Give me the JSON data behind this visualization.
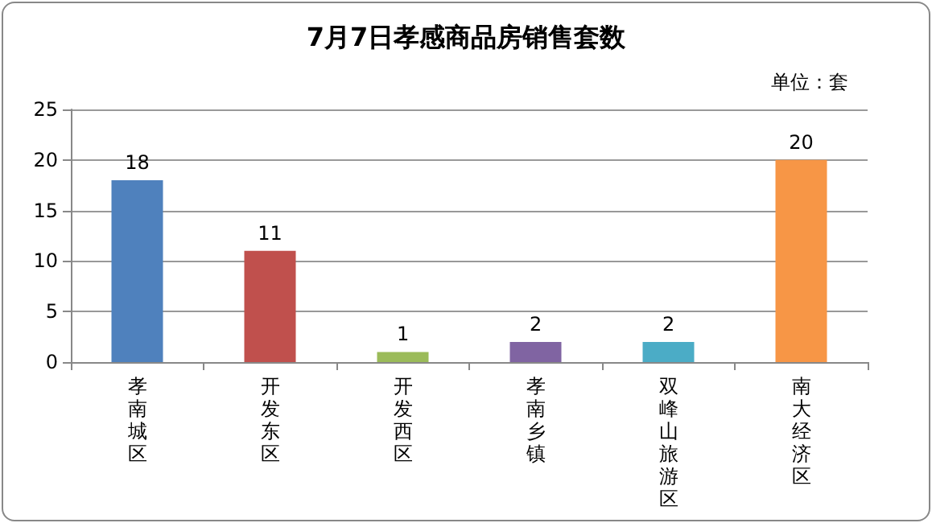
{
  "chart_data": {
    "type": "bar",
    "title": "7月7日孝感商品房销售套数",
    "subtitle": "单位：套",
    "categories": [
      "孝南城区",
      "开发东区",
      "开发西区",
      "孝南乡镇",
      "双峰山旅游区",
      "南大经济区"
    ],
    "values": [
      18,
      11,
      1,
      2,
      2,
      20
    ],
    "colors": [
      "#4f81bd",
      "#c0504d",
      "#9bbb59",
      "#8064a2",
      "#4bacc6",
      "#f79646"
    ],
    "ylim": [
      0,
      25
    ],
    "yticks": [
      0,
      5,
      10,
      15,
      20,
      25
    ],
    "grid": "y",
    "data_labels": true
  }
}
